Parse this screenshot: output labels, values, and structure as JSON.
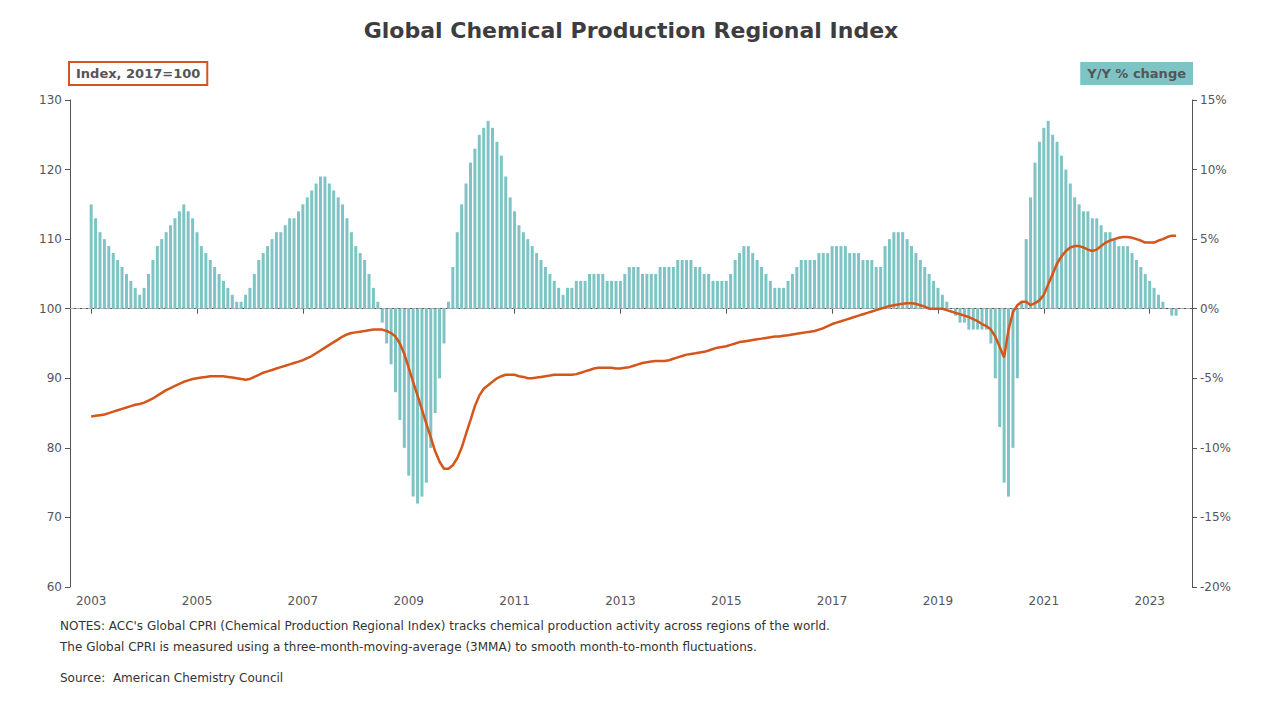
{
  "chart_data": {
    "type": "bar",
    "title": "Global Chemical Production Regional Index",
    "ylabel": "Index, 2017=100",
    "y2label": "Y/Y % change",
    "notes": [
      "NOTES: ACC's Global CPRI (Chemical Production Regional Index) tracks chemical production activity across regions of the world.",
      "The Global CPRI is measured using a three-month-moving-average (3MMA) to smooth month-to-month fluctuations."
    ],
    "source": "Source:  American Chemistry Council",
    "xlim": [
      2002.6,
      2023.8
    ],
    "xticks": [
      2003,
      2005,
      2007,
      2009,
      2011,
      2013,
      2015,
      2017,
      2019,
      2021,
      2023
    ],
    "ylim": [
      60,
      130
    ],
    "yticks": [
      60,
      70,
      80,
      90,
      100,
      110,
      120,
      130
    ],
    "y2lim": [
      -20,
      15
    ],
    "y2ticks": [
      {
        "value": -20,
        "label": "-20%"
      },
      {
        "value": -15,
        "label": "-15%"
      },
      {
        "value": -10,
        "label": "-10%"
      },
      {
        "value": -5,
        "label": "-5%"
      },
      {
        "value": 0,
        "label": "0%"
      },
      {
        "value": 5,
        "label": "5%"
      },
      {
        "value": 10,
        "label": "10%"
      },
      {
        "value": 15,
        "label": "15%"
      }
    ],
    "reference_line": 100,
    "x": [
      2003.0,
      2003.083,
      2003.167,
      2003.25,
      2003.333,
      2003.417,
      2003.5,
      2003.583,
      2003.667,
      2003.75,
      2003.833,
      2003.917,
      2004.0,
      2004.083,
      2004.167,
      2004.25,
      2004.333,
      2004.417,
      2004.5,
      2004.583,
      2004.667,
      2004.75,
      2004.833,
      2004.917,
      2005.0,
      2005.083,
      2005.167,
      2005.25,
      2005.333,
      2005.417,
      2005.5,
      2005.583,
      2005.667,
      2005.75,
      2005.833,
      2005.917,
      2006.0,
      2006.083,
      2006.167,
      2006.25,
      2006.333,
      2006.417,
      2006.5,
      2006.583,
      2006.667,
      2006.75,
      2006.833,
      2006.917,
      2007.0,
      2007.083,
      2007.167,
      2007.25,
      2007.333,
      2007.417,
      2007.5,
      2007.583,
      2007.667,
      2007.75,
      2007.833,
      2007.917,
      2008.0,
      2008.083,
      2008.167,
      2008.25,
      2008.333,
      2008.417,
      2008.5,
      2008.583,
      2008.667,
      2008.75,
      2008.833,
      2008.917,
      2009.0,
      2009.083,
      2009.167,
      2009.25,
      2009.333,
      2009.417,
      2009.5,
      2009.583,
      2009.667,
      2009.75,
      2009.833,
      2009.917,
      2010.0,
      2010.083,
      2010.167,
      2010.25,
      2010.333,
      2010.417,
      2010.5,
      2010.583,
      2010.667,
      2010.75,
      2010.833,
      2010.917,
      2011.0,
      2011.083,
      2011.167,
      2011.25,
      2011.333,
      2011.417,
      2011.5,
      2011.583,
      2011.667,
      2011.75,
      2011.833,
      2011.917,
      2012.0,
      2012.083,
      2012.167,
      2012.25,
      2012.333,
      2012.417,
      2012.5,
      2012.583,
      2012.667,
      2012.75,
      2012.833,
      2012.917,
      2013.0,
      2013.083,
      2013.167,
      2013.25,
      2013.333,
      2013.417,
      2013.5,
      2013.583,
      2013.667,
      2013.75,
      2013.833,
      2013.917,
      2014.0,
      2014.083,
      2014.167,
      2014.25,
      2014.333,
      2014.417,
      2014.5,
      2014.583,
      2014.667,
      2014.75,
      2014.833,
      2014.917,
      2015.0,
      2015.083,
      2015.167,
      2015.25,
      2015.333,
      2015.417,
      2015.5,
      2015.583,
      2015.667,
      2015.75,
      2015.833,
      2015.917,
      2016.0,
      2016.083,
      2016.167,
      2016.25,
      2016.333,
      2016.417,
      2016.5,
      2016.583,
      2016.667,
      2016.75,
      2016.833,
      2016.917,
      2017.0,
      2017.083,
      2017.167,
      2017.25,
      2017.333,
      2017.417,
      2017.5,
      2017.583,
      2017.667,
      2017.75,
      2017.833,
      2017.917,
      2018.0,
      2018.083,
      2018.167,
      2018.25,
      2018.333,
      2018.417,
      2018.5,
      2018.583,
      2018.667,
      2018.75,
      2018.833,
      2018.917,
      2019.0,
      2019.083,
      2019.167,
      2019.25,
      2019.333,
      2019.417,
      2019.5,
      2019.583,
      2019.667,
      2019.75,
      2019.833,
      2019.917,
      2020.0,
      2020.083,
      2020.167,
      2020.25,
      2020.333,
      2020.417,
      2020.5,
      2020.583,
      2020.667,
      2020.75,
      2020.833,
      2020.917,
      2021.0,
      2021.083,
      2021.167,
      2021.25,
      2021.333,
      2021.417,
      2021.5,
      2021.583,
      2021.667,
      2021.75,
      2021.833,
      2021.917,
      2022.0,
      2022.083,
      2022.167,
      2022.25,
      2022.333,
      2022.417,
      2022.5,
      2022.583,
      2022.667,
      2022.75,
      2022.833,
      2022.917,
      2023.0,
      2023.083,
      2023.167,
      2023.25,
      2023.333,
      2023.417,
      2023.5
    ],
    "series": [
      {
        "type": "bar",
        "axis": "y2",
        "color": "#7fc4c4",
        "values": [
          7.5,
          6.5,
          5.5,
          5.0,
          4.5,
          4.0,
          3.5,
          3.0,
          2.5,
          2.0,
          1.5,
          1.0,
          1.5,
          2.5,
          3.5,
          4.5,
          5.0,
          5.5,
          6.0,
          6.5,
          7.0,
          7.5,
          7.0,
          6.5,
          5.5,
          4.5,
          4.0,
          3.5,
          3.0,
          2.5,
          2.0,
          1.5,
          1.0,
          0.5,
          0.5,
          1.0,
          1.5,
          2.5,
          3.5,
          4.0,
          4.5,
          5.0,
          5.5,
          5.5,
          6.0,
          6.5,
          6.5,
          7.0,
          7.5,
          8.0,
          8.5,
          9.0,
          9.5,
          9.5,
          9.0,
          8.5,
          8.0,
          7.5,
          6.5,
          5.5,
          4.5,
          4.0,
          3.5,
          2.5,
          1.5,
          0.5,
          -1.0,
          -2.5,
          -4.0,
          -6.0,
          -8.0,
          -10.0,
          -12.0,
          -13.5,
          -14.0,
          -13.5,
          -12.5,
          -10.0,
          -7.5,
          -5.0,
          -2.5,
          0.5,
          3.0,
          5.5,
          7.5,
          9.0,
          10.5,
          11.5,
          12.5,
          13.0,
          13.5,
          13.0,
          12.0,
          11.0,
          9.5,
          8.0,
          7.0,
          6.0,
          5.5,
          5.0,
          4.5,
          4.0,
          3.5,
          3.0,
          2.5,
          2.0,
          1.5,
          1.0,
          1.5,
          1.5,
          2.0,
          2.0,
          2.0,
          2.5,
          2.5,
          2.5,
          2.5,
          2.0,
          2.0,
          2.0,
          2.0,
          2.5,
          3.0,
          3.0,
          3.0,
          2.5,
          2.5,
          2.5,
          2.5,
          3.0,
          3.0,
          3.0,
          3.0,
          3.5,
          3.5,
          3.5,
          3.5,
          3.0,
          3.0,
          2.5,
          2.5,
          2.0,
          2.0,
          2.0,
          2.0,
          2.5,
          3.5,
          4.0,
          4.5,
          4.5,
          4.0,
          3.5,
          3.0,
          2.5,
          2.0,
          1.5,
          1.5,
          1.5,
          2.0,
          2.5,
          3.0,
          3.5,
          3.5,
          3.5,
          3.5,
          4.0,
          4.0,
          4.0,
          4.5,
          4.5,
          4.5,
          4.5,
          4.0,
          4.0,
          4.0,
          3.5,
          3.5,
          3.5,
          3.0,
          3.0,
          4.5,
          5.0,
          5.5,
          5.5,
          5.5,
          5.0,
          4.5,
          4.0,
          3.5,
          3.0,
          2.5,
          2.0,
          1.5,
          1.0,
          0.5,
          0.0,
          -0.5,
          -1.0,
          -1.0,
          -1.5,
          -1.5,
          -1.5,
          -1.5,
          -1.5,
          -2.5,
          -5.0,
          -8.5,
          -12.5,
          -13.5,
          -10.0,
          -5.0,
          0.5,
          5.0,
          8.0,
          10.5,
          12.0,
          13.0,
          13.5,
          12.5,
          12.0,
          11.0,
          10.0,
          9.0,
          8.0,
          7.5,
          7.0,
          7.0,
          6.5,
          6.5,
          6.0,
          5.5,
          5.5,
          5.0,
          4.5,
          4.5,
          4.5,
          4.0,
          3.5,
          3.0,
          2.5,
          2.0,
          1.5,
          1.0,
          0.5,
          0.0,
          -0.5,
          -0.5
        ]
      },
      {
        "type": "line",
        "color": "#d4561a",
        "values": [
          84.5,
          84.6,
          84.7,
          84.8,
          85.0,
          85.2,
          85.4,
          85.6,
          85.8,
          86.0,
          86.2,
          86.3,
          86.5,
          86.8,
          87.1,
          87.5,
          87.9,
          88.3,
          88.6,
          88.9,
          89.2,
          89.5,
          89.7,
          89.9,
          90.0,
          90.1,
          90.2,
          90.3,
          90.3,
          90.3,
          90.3,
          90.2,
          90.1,
          90.0,
          89.9,
          89.8,
          89.9,
          90.2,
          90.5,
          90.8,
          91.0,
          91.2,
          91.4,
          91.6,
          91.8,
          92.0,
          92.2,
          92.4,
          92.6,
          92.9,
          93.2,
          93.6,
          94.0,
          94.4,
          94.8,
          95.2,
          95.6,
          96.0,
          96.3,
          96.5,
          96.6,
          96.7,
          96.8,
          96.9,
          97.0,
          97.0,
          97.0,
          96.8,
          96.5,
          96.0,
          95.0,
          93.5,
          91.5,
          89.5,
          87.5,
          85.5,
          83.5,
          81.5,
          79.5,
          78.0,
          77.0,
          77.0,
          77.5,
          78.5,
          80.0,
          82.0,
          84.0,
          86.0,
          87.5,
          88.5,
          89.0,
          89.5,
          90.0,
          90.3,
          90.5,
          90.5,
          90.5,
          90.3,
          90.2,
          90.0,
          90.0,
          90.1,
          90.2,
          90.3,
          90.4,
          90.5,
          90.5,
          90.5,
          90.5,
          90.5,
          90.6,
          90.8,
          91.0,
          91.2,
          91.4,
          91.5,
          91.5,
          91.5,
          91.5,
          91.4,
          91.4,
          91.5,
          91.6,
          91.8,
          92.0,
          92.2,
          92.3,
          92.4,
          92.5,
          92.5,
          92.5,
          92.6,
          92.8,
          93.0,
          93.2,
          93.4,
          93.5,
          93.6,
          93.7,
          93.8,
          94.0,
          94.2,
          94.4,
          94.5,
          94.6,
          94.8,
          95.0,
          95.2,
          95.3,
          95.4,
          95.5,
          95.6,
          95.7,
          95.8,
          95.9,
          96.0,
          96.0,
          96.1,
          96.2,
          96.3,
          96.4,
          96.5,
          96.6,
          96.7,
          96.8,
          97.0,
          97.2,
          97.5,
          97.8,
          98.0,
          98.2,
          98.4,
          98.6,
          98.8,
          99.0,
          99.2,
          99.4,
          99.6,
          99.8,
          100.0,
          100.2,
          100.4,
          100.5,
          100.6,
          100.7,
          100.8,
          100.8,
          100.7,
          100.5,
          100.3,
          100.0,
          100.0,
          100.0,
          100.0,
          99.8,
          99.6,
          99.4,
          99.2,
          99.0,
          98.8,
          98.5,
          98.2,
          97.8,
          97.5,
          97.0,
          96.0,
          94.5,
          93.0,
          97.0,
          99.5,
          100.5,
          101.0,
          101.0,
          100.5,
          100.8,
          101.2,
          102.0,
          103.5,
          105.0,
          106.5,
          107.5,
          108.3,
          108.8,
          109.0,
          109.0,
          108.8,
          108.5,
          108.3,
          108.5,
          109.0,
          109.5,
          109.8,
          110.0,
          110.2,
          110.3,
          110.3,
          110.2,
          110.0,
          109.8,
          109.5,
          109.5,
          109.5,
          109.8,
          110.0,
          110.3,
          110.5,
          110.5
        ]
      }
    ]
  }
}
